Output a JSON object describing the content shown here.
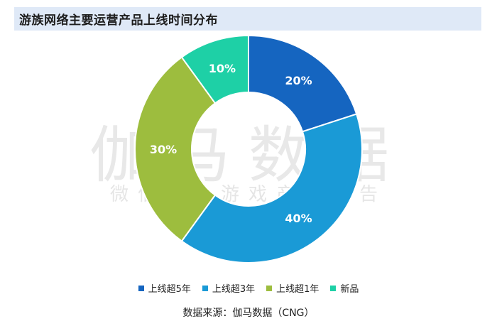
{
  "title": "游族网络主要运营产品上线时间分布",
  "source": "数据来源：伽马数据（CNG）",
  "watermark": {
    "line1": "伽马数据",
    "line2": "微信号：游戏产业报告"
  },
  "chart_data": {
    "type": "pie",
    "donut": true,
    "legend_position": "bottom",
    "slices": [
      {
        "label": "上线超5年",
        "value": 20,
        "display": "20%",
        "color": "#1565c0"
      },
      {
        "label": "上线超3年",
        "value": 40,
        "display": "40%",
        "color": "#1a9ad6"
      },
      {
        "label": "上线超1年",
        "value": 30,
        "display": "30%",
        "color": "#9dbd3e"
      },
      {
        "label": "新品",
        "value": 10,
        "display": "10%",
        "color": "#1ed0a6"
      }
    ]
  }
}
